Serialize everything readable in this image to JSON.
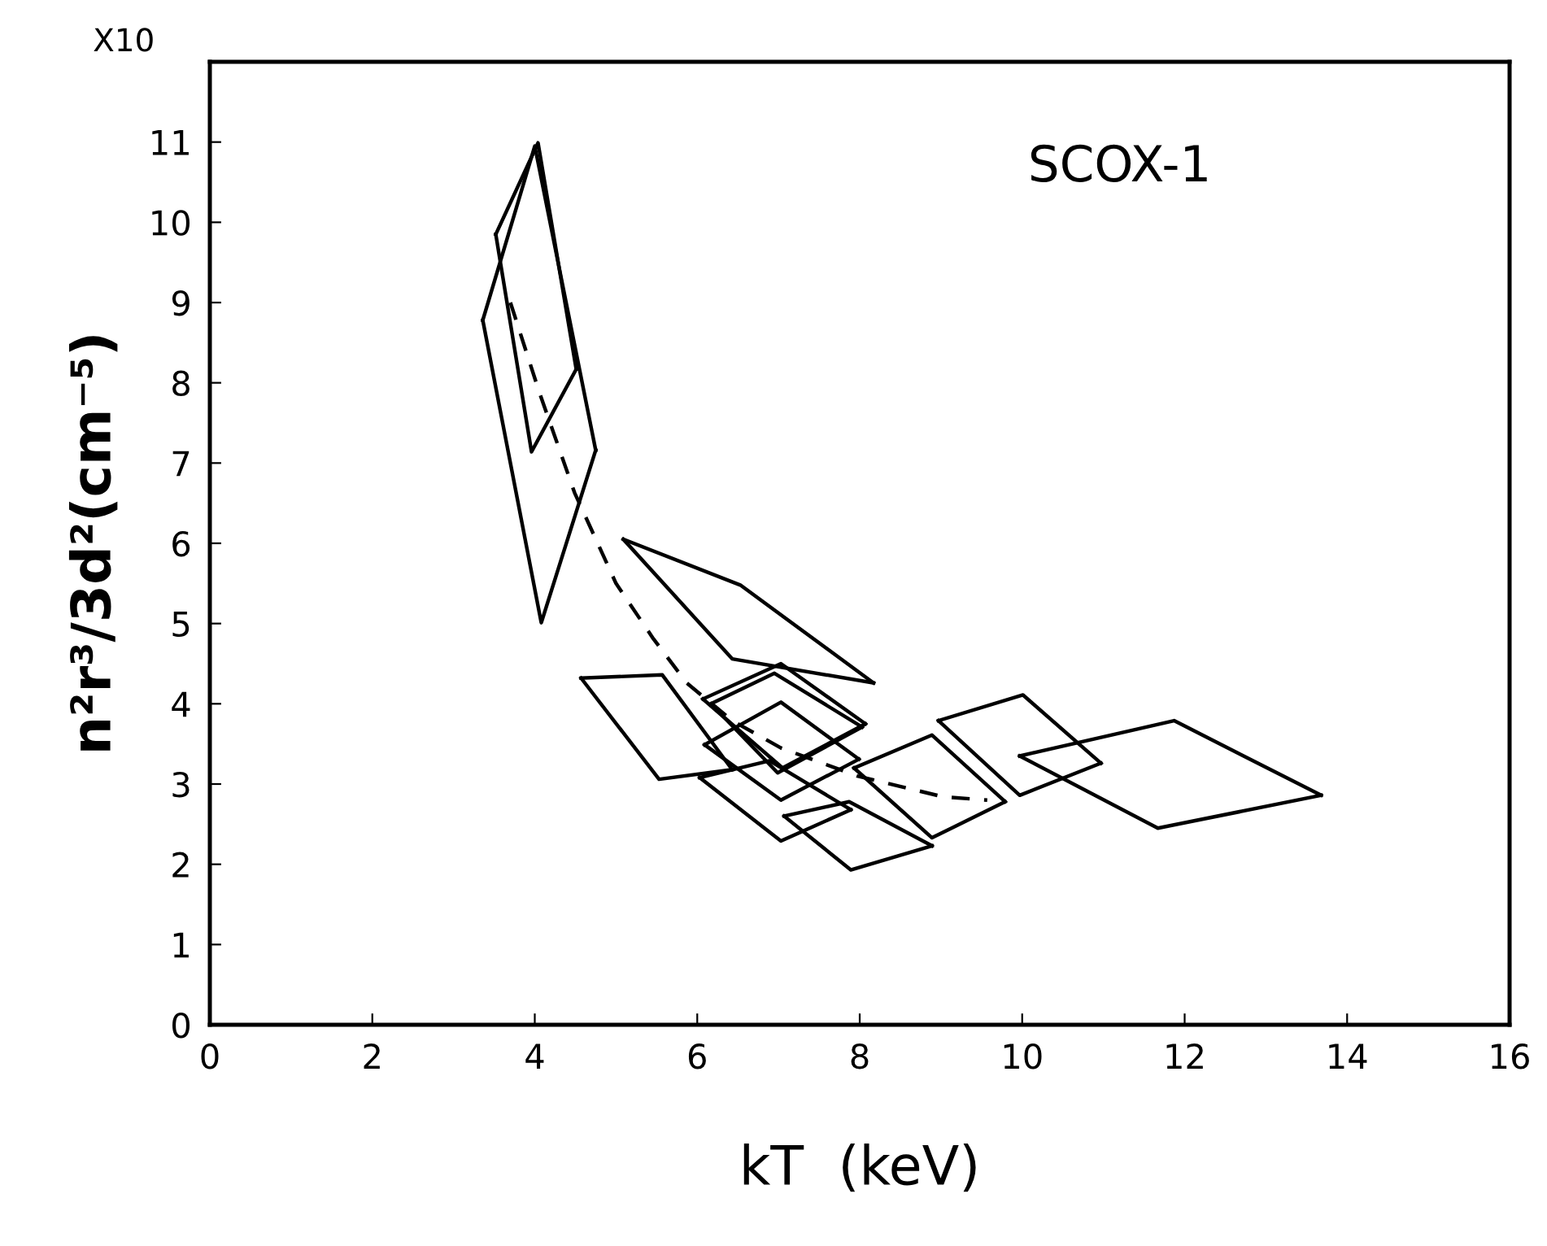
{
  "chart_data": {
    "type": "line",
    "xlabel": "kT  (keV)",
    "ylabel": "n²r³/3d²(cm⁻⁵)",
    "annotations": [
      "SCOX-1",
      "X10"
    ],
    "xlim": [
      0,
      16
    ],
    "xticks": [
      0,
      2,
      4,
      6,
      8,
      10,
      12,
      14,
      16
    ],
    "ylim": [
      0,
      12
    ],
    "yticks": [
      0,
      1,
      2,
      3,
      4,
      5,
      6,
      7,
      8,
      9,
      10,
      11
    ],
    "grid": false,
    "legend": false,
    "marker": "none",
    "line_style": "solid",
    "series": [
      {
        "color": "#000000",
        "x": [
          3.52,
          4.04,
          4.51
        ],
        "values": [
          9.85,
          10.99,
          8.17
        ]
      },
      {
        "color": "#000000",
        "x": [
          3.52,
          3.96,
          4.51
        ],
        "values": [
          9.85,
          7.14,
          8.17
        ]
      },
      {
        "color": "#000000",
        "x": [
          3.36,
          4.0,
          4.75
        ],
        "values": [
          8.78,
          10.95,
          7.16
        ]
      },
      {
        "color": "#000000",
        "x": [
          3.36,
          4.08,
          4.75
        ],
        "values": [
          8.78,
          5.01,
          7.16
        ]
      },
      {
        "color": "#000000",
        "x": [
          5.09,
          6.53,
          8.17
        ],
        "values": [
          6.05,
          5.48,
          4.26
        ]
      },
      {
        "color": "#000000",
        "x": [
          5.09,
          6.43,
          8.17
        ],
        "values": [
          6.05,
          4.56,
          4.26
        ]
      },
      {
        "color": "#000000",
        "x": [
          4.57,
          5.57,
          6.43
        ],
        "values": [
          4.32,
          4.36,
          3.18
        ]
      },
      {
        "color": "#000000",
        "x": [
          4.57,
          5.53,
          6.43
        ],
        "values": [
          4.32,
          3.06,
          3.18
        ]
      },
      {
        "color": "#000000",
        "x": [
          6.17,
          6.95,
          8.03
        ],
        "values": [
          4.0,
          4.38,
          3.71
        ]
      },
      {
        "color": "#000000",
        "x": [
          6.17,
          6.99,
          8.03
        ],
        "values": [
          4.0,
          3.14,
          3.71
        ]
      },
      {
        "color": "#000000",
        "x": [
          6.07,
          7.03,
          8.07
        ],
        "values": [
          4.06,
          4.5,
          3.75
        ]
      },
      {
        "color": "#000000",
        "x": [
          6.07,
          7.05,
          8.07
        ],
        "values": [
          4.06,
          3.2,
          3.75
        ]
      },
      {
        "color": "#000000",
        "x": [
          6.09,
          7.03,
          7.99
        ],
        "values": [
          3.49,
          4.02,
          3.31
        ]
      },
      {
        "color": "#000000",
        "x": [
          6.09,
          7.03,
          7.99
        ],
        "values": [
          3.49,
          2.8,
          3.31
        ]
      },
      {
        "color": "#000000",
        "x": [
          6.03,
          6.89,
          7.89
        ],
        "values": [
          3.08,
          3.29,
          2.68
        ]
      },
      {
        "color": "#000000",
        "x": [
          6.03,
          7.03,
          7.89
        ],
        "values": [
          3.08,
          2.29,
          2.68
        ]
      },
      {
        "color": "#000000",
        "x": [
          7.07,
          7.87,
          8.89
        ],
        "values": [
          2.6,
          2.78,
          2.23
        ]
      },
      {
        "color": "#000000",
        "x": [
          7.07,
          7.89,
          8.89
        ],
        "values": [
          2.6,
          1.93,
          2.23
        ]
      },
      {
        "color": "#000000",
        "x": [
          7.93,
          8.89,
          9.79
        ],
        "values": [
          3.2,
          3.61,
          2.78
        ]
      },
      {
        "color": "#000000",
        "x": [
          7.93,
          8.89,
          9.79
        ],
        "values": [
          3.2,
          2.33,
          2.78
        ]
      },
      {
        "color": "#000000",
        "x": [
          8.97,
          10.01,
          10.97
        ],
        "values": [
          3.79,
          4.11,
          3.26
        ]
      },
      {
        "color": "#000000",
        "x": [
          8.97,
          9.97,
          10.97
        ],
        "values": [
          3.79,
          2.86,
          3.26
        ]
      },
      {
        "color": "#000000",
        "x": [
          9.97,
          11.87,
          13.68
        ],
        "values": [
          3.35,
          3.79,
          2.86
        ]
      },
      {
        "color": "#000000",
        "x": [
          9.97,
          11.67,
          13.68
        ],
        "values": [
          3.35,
          2.45,
          2.86
        ]
      },
      {
        "color": "#000000",
        "line_style": "dashed",
        "x": [
          3.7,
          4.05,
          4.49,
          5.0,
          5.46,
          5.87,
          6.43,
          7.03,
          7.97,
          9.03,
          9.57
        ],
        "values": [
          9.0,
          7.9,
          6.63,
          5.5,
          4.81,
          4.26,
          3.79,
          3.45,
          3.1,
          2.84,
          2.8
        ]
      }
    ]
  }
}
